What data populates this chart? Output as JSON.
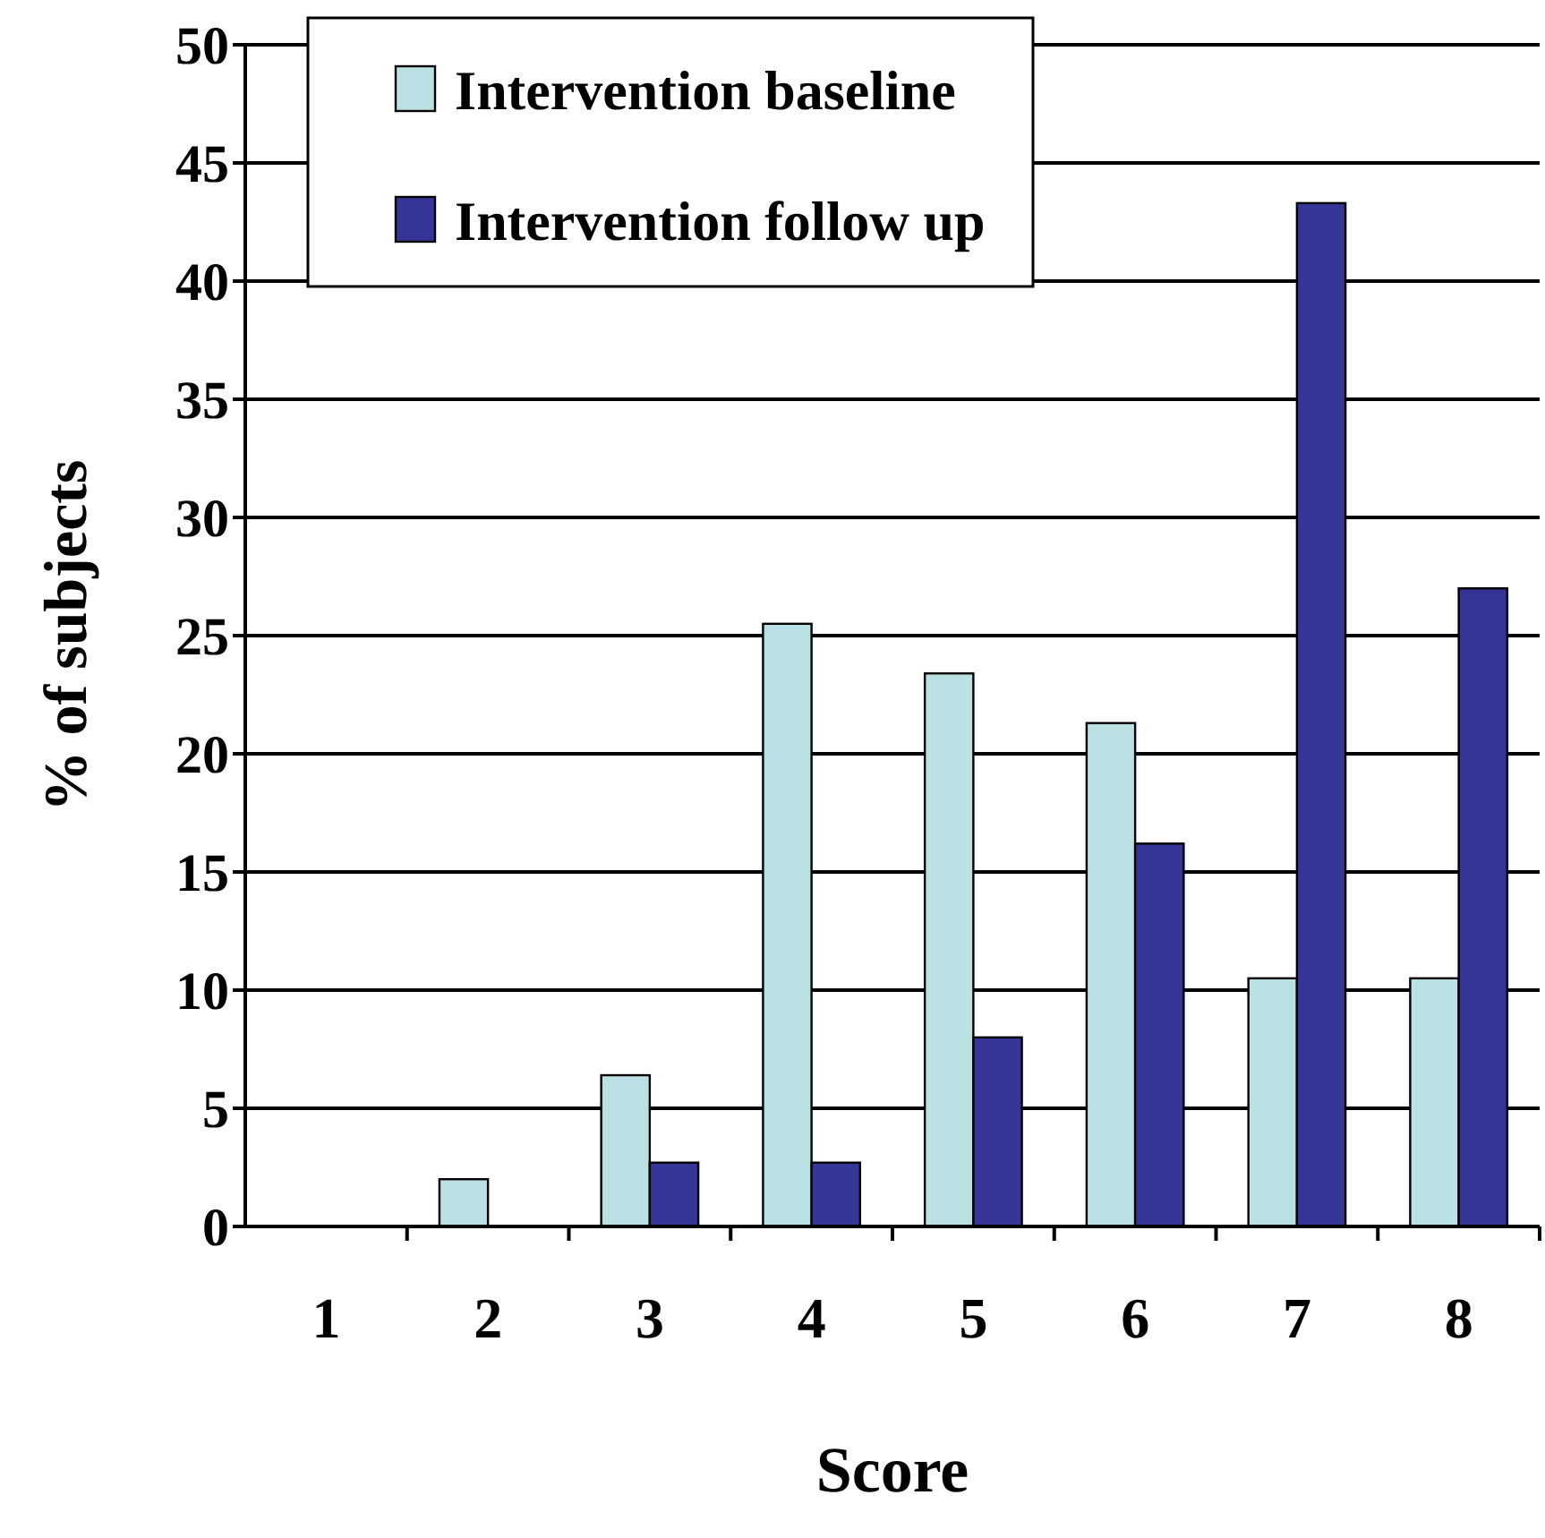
{
  "chart_data": {
    "type": "bar",
    "xlabel": "Score",
    "ylabel": "% of subjects",
    "categories": [
      "1",
      "2",
      "3",
      "4",
      "5",
      "6",
      "7",
      "8"
    ],
    "series": [
      {
        "name": "Intervention baseline",
        "color": "#b9e0e2",
        "values": [
          0,
          2.0,
          6.4,
          25.5,
          23.4,
          21.3,
          10.5,
          10.5
        ]
      },
      {
        "name": "Intervention follow up",
        "color": "#353598",
        "values": [
          0,
          0,
          2.7,
          2.7,
          8.0,
          16.2,
          43.3,
          27.0
        ]
      }
    ],
    "ylim": [
      0,
      50
    ],
    "yticks": [
      0,
      5,
      10,
      15,
      20,
      25,
      30,
      35,
      40,
      45,
      50
    ],
    "grid": "y",
    "legend": "top left"
  }
}
